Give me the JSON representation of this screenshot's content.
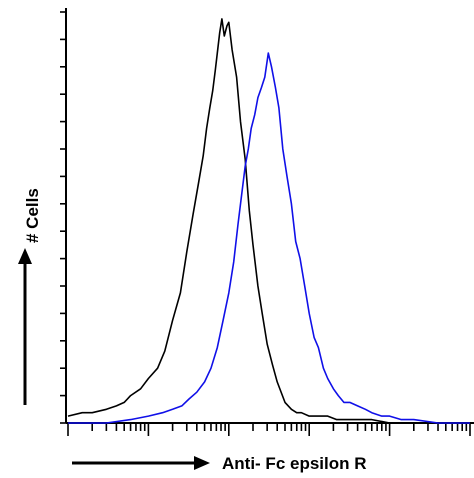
{
  "chart_data": {
    "type": "line",
    "title": "",
    "xlabel": "Anti- Fc epsilon R",
    "ylabel": "# Cells",
    "x_scale": "log",
    "xlim": [
      1,
      100000
    ],
    "ylim": [
      0,
      120
    ],
    "grid": false,
    "legend": "none",
    "series": [
      {
        "color": "#000000",
        "x": [
          1,
          1.5,
          2,
          3,
          4,
          5,
          6,
          8,
          10,
          13,
          16,
          20,
          25,
          30,
          36,
          42,
          48,
          53,
          58,
          63,
          68,
          72,
          77,
          82,
          88,
          95,
          100,
          110,
          125,
          140,
          160,
          180,
          200,
          230,
          260,
          300,
          350,
          400,
          500,
          600,
          700,
          800,
          1000,
          1300,
          1700,
          2200,
          3000,
          4000,
          6000,
          10000,
          20000,
          100000
        ],
        "y": [
          2,
          3,
          3,
          4,
          5,
          6,
          8,
          10,
          13,
          16,
          21,
          30,
          38,
          50,
          61,
          70,
          78,
          86,
          92,
          97,
          103,
          108,
          114,
          118,
          113,
          116,
          117,
          109,
          101,
          88,
          77,
          62,
          52,
          40,
          32,
          23,
          17,
          12,
          6,
          4,
          3,
          3,
          2,
          2,
          2,
          1,
          1,
          1,
          1,
          0,
          0,
          0
        ]
      },
      {
        "color": "#1010e8",
        "x": [
          1,
          3,
          6,
          10,
          15,
          20,
          26,
          32,
          40,
          50,
          60,
          72,
          85,
          100,
          115,
          130,
          145,
          160,
          175,
          190,
          210,
          230,
          255,
          280,
          310,
          340,
          380,
          420,
          470,
          530,
          600,
          680,
          770,
          880,
          1000,
          1150,
          1300,
          1500,
          1700,
          2000,
          2300,
          2700,
          3200,
          4000,
          5000,
          6000,
          8000,
          10000,
          14000,
          20000,
          40000,
          100000
        ],
        "y": [
          0,
          0,
          1,
          2,
          3,
          4,
          5,
          7,
          9,
          12,
          16,
          22,
          30,
          38,
          47,
          58,
          67,
          75,
          80,
          86,
          90,
          95,
          98,
          101,
          108,
          104,
          98,
          92,
          80,
          72,
          64,
          53,
          48,
          40,
          32,
          25,
          22,
          16,
          13,
          10,
          8,
          6,
          6,
          5,
          4,
          3,
          2,
          2,
          1,
          1,
          0,
          0
        ]
      }
    ]
  }
}
